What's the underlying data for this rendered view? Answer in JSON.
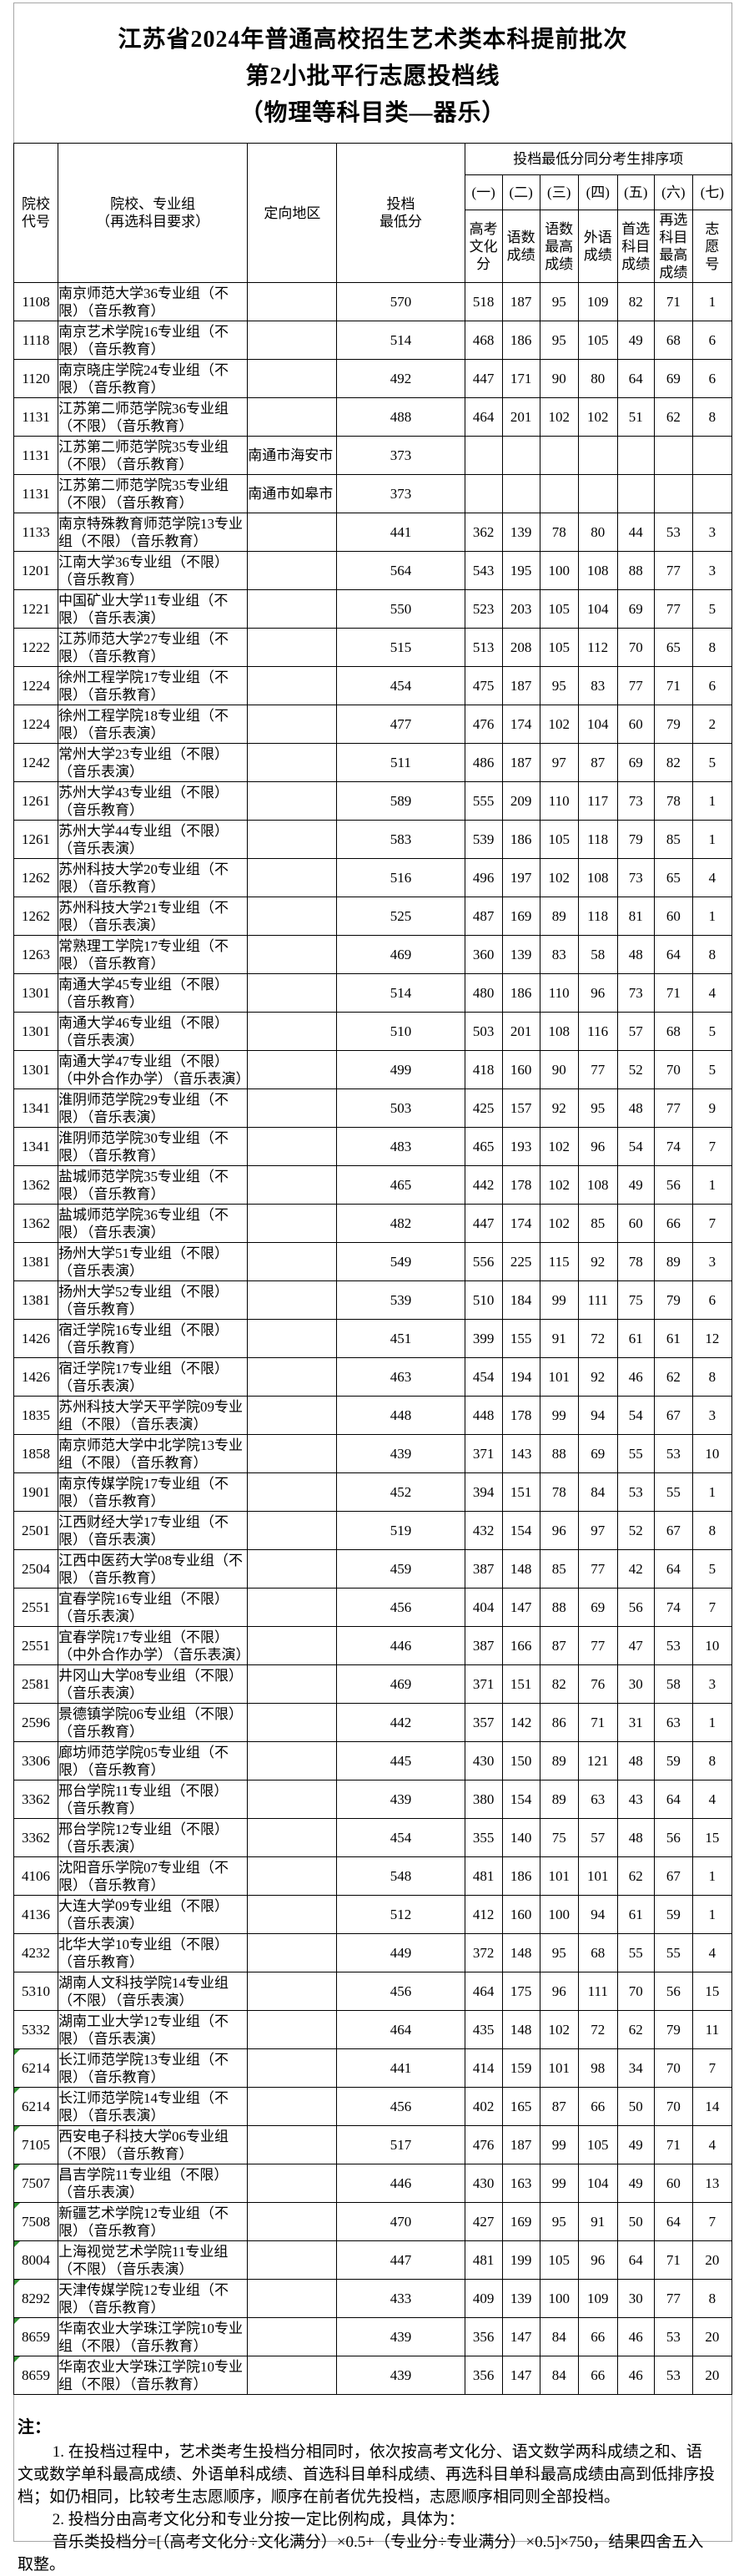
{
  "title": {
    "line1": "江苏省2024年普通高校招生艺术类本科提前批次",
    "line2": "第2小批平行志愿投档线",
    "line3": "（物理等科目类—器乐）"
  },
  "colors": {
    "grid": "#000000",
    "page_border": "#a6a6a6",
    "marker_green": "#2f8f2f",
    "text": "#000000",
    "background": "#ffffff"
  },
  "table": {
    "headers": {
      "code": [
        "院校",
        "代号"
      ],
      "name": [
        "院校、专业组",
        "（再选科目要求）"
      ],
      "region": [
        "定向地区"
      ],
      "min_score": [
        "投档",
        "最低分"
      ],
      "group_title": "投档最低分同分考生排序项",
      "ordinals": [
        "(一)",
        "(二)",
        "(三)",
        "(四)",
        "(五)",
        "(六)",
        "(七)"
      ],
      "sub_labels": [
        [
          "高考",
          "文化",
          "分"
        ],
        [
          "语数",
          "成绩"
        ],
        [
          "语数",
          "最高",
          "成绩"
        ],
        [
          "外语",
          "成绩"
        ],
        [
          "首选",
          "科目",
          "成绩"
        ],
        [
          "再选",
          "科目",
          "最高",
          "成绩"
        ],
        [
          "志",
          "愿",
          "号"
        ]
      ]
    },
    "rows": [
      {
        "code": "1108",
        "name": "南京师范大学36专业组（不限）（音乐教育）",
        "region": "",
        "min": "570",
        "tie": [
          "518",
          "187",
          "95",
          "109",
          "82",
          "71",
          "1"
        ],
        "marker": false
      },
      {
        "code": "1118",
        "name": "南京艺术学院16专业组（不限）（音乐教育）",
        "region": "",
        "min": "514",
        "tie": [
          "468",
          "186",
          "95",
          "105",
          "49",
          "68",
          "6"
        ],
        "marker": false
      },
      {
        "code": "1120",
        "name": "南京晓庄学院24专业组（不限）（音乐教育）",
        "region": "",
        "min": "492",
        "tie": [
          "447",
          "171",
          "90",
          "80",
          "64",
          "69",
          "6"
        ],
        "marker": false
      },
      {
        "code": "1131",
        "name": "江苏第二师范学院36专业组（不限）（音乐教育）",
        "region": "",
        "min": "488",
        "tie": [
          "464",
          "201",
          "102",
          "102",
          "51",
          "62",
          "8"
        ],
        "marker": false
      },
      {
        "code": "1131",
        "name": "江苏第二师范学院35专业组（不限）（音乐教育）",
        "region": "南通市海安市",
        "min": "373",
        "tie": [
          "",
          "",
          "",
          "",
          "",
          "",
          ""
        ],
        "marker": false
      },
      {
        "code": "1131",
        "name": "江苏第二师范学院35专业组（不限）（音乐教育）",
        "region": "南通市如皋市",
        "min": "373",
        "tie": [
          "",
          "",
          "",
          "",
          "",
          "",
          ""
        ],
        "marker": false
      },
      {
        "code": "1133",
        "name": "南京特殊教育师范学院13专业组（不限）（音乐教育）",
        "region": "",
        "min": "441",
        "tie": [
          "362",
          "139",
          "78",
          "80",
          "44",
          "53",
          "3"
        ],
        "marker": false
      },
      {
        "code": "1201",
        "name": "江南大学36专业组（不限）（音乐教育）",
        "region": "",
        "min": "564",
        "tie": [
          "543",
          "195",
          "100",
          "108",
          "88",
          "77",
          "3"
        ],
        "marker": false
      },
      {
        "code": "1221",
        "name": "中国矿业大学11专业组（不限）（音乐表演）",
        "region": "",
        "min": "550",
        "tie": [
          "523",
          "203",
          "105",
          "104",
          "69",
          "77",
          "5"
        ],
        "marker": false
      },
      {
        "code": "1222",
        "name": "江苏师范大学27专业组（不限）（音乐教育）",
        "region": "",
        "min": "515",
        "tie": [
          "513",
          "208",
          "105",
          "112",
          "70",
          "65",
          "8"
        ],
        "marker": false
      },
      {
        "code": "1224",
        "name": "徐州工程学院17专业组（不限）（音乐教育）",
        "region": "",
        "min": "454",
        "tie": [
          "475",
          "187",
          "95",
          "83",
          "77",
          "71",
          "6"
        ],
        "marker": false
      },
      {
        "code": "1224",
        "name": "徐州工程学院18专业组（不限）（音乐表演）",
        "region": "",
        "min": "477",
        "tie": [
          "476",
          "174",
          "102",
          "104",
          "60",
          "79",
          "2"
        ],
        "marker": false
      },
      {
        "code": "1242",
        "name": "常州大学23专业组（不限）（音乐表演）",
        "region": "",
        "min": "511",
        "tie": [
          "486",
          "187",
          "97",
          "87",
          "69",
          "82",
          "5"
        ],
        "marker": false
      },
      {
        "code": "1261",
        "name": "苏州大学43专业组（不限）（音乐教育）",
        "region": "",
        "min": "589",
        "tie": [
          "555",
          "209",
          "110",
          "117",
          "73",
          "78",
          "1"
        ],
        "marker": false
      },
      {
        "code": "1261",
        "name": "苏州大学44专业组（不限）（音乐表演）",
        "region": "",
        "min": "583",
        "tie": [
          "539",
          "186",
          "105",
          "118",
          "79",
          "85",
          "1"
        ],
        "marker": false
      },
      {
        "code": "1262",
        "name": "苏州科技大学20专业组（不限）（音乐教育）",
        "region": "",
        "min": "516",
        "tie": [
          "496",
          "197",
          "102",
          "108",
          "73",
          "65",
          "4"
        ],
        "marker": false
      },
      {
        "code": "1262",
        "name": "苏州科技大学21专业组（不限）（音乐表演）",
        "region": "",
        "min": "525",
        "tie": [
          "487",
          "169",
          "89",
          "118",
          "81",
          "60",
          "1"
        ],
        "marker": false
      },
      {
        "code": "1263",
        "name": "常熟理工学院17专业组（不限）（音乐教育）",
        "region": "",
        "min": "469",
        "tie": [
          "360",
          "139",
          "83",
          "58",
          "48",
          "64",
          "8"
        ],
        "marker": false
      },
      {
        "code": "1301",
        "name": "南通大学45专业组（不限）（音乐教育）",
        "region": "",
        "min": "514",
        "tie": [
          "480",
          "186",
          "110",
          "96",
          "73",
          "71",
          "4"
        ],
        "marker": false
      },
      {
        "code": "1301",
        "name": "南通大学46专业组（不限）（音乐表演）",
        "region": "",
        "min": "510",
        "tie": [
          "503",
          "201",
          "108",
          "116",
          "57",
          "68",
          "5"
        ],
        "marker": false
      },
      {
        "code": "1301",
        "name": "南通大学47专业组（不限）（中外合作办学）（音乐表演）",
        "region": "",
        "min": "499",
        "tie": [
          "418",
          "160",
          "90",
          "77",
          "52",
          "70",
          "5"
        ],
        "marker": false
      },
      {
        "code": "1341",
        "name": "淮阴师范学院29专业组（不限）（音乐表演）",
        "region": "",
        "min": "503",
        "tie": [
          "425",
          "157",
          "92",
          "95",
          "48",
          "77",
          "9"
        ],
        "marker": false
      },
      {
        "code": "1341",
        "name": "淮阴师范学院30专业组（不限）（音乐教育）",
        "region": "",
        "min": "483",
        "tie": [
          "465",
          "193",
          "102",
          "96",
          "54",
          "74",
          "7"
        ],
        "marker": false
      },
      {
        "code": "1362",
        "name": "盐城师范学院35专业组（不限）（音乐教育）",
        "region": "",
        "min": "465",
        "tie": [
          "442",
          "178",
          "102",
          "108",
          "49",
          "56",
          "1"
        ],
        "marker": false
      },
      {
        "code": "1362",
        "name": "盐城师范学院36专业组（不限）（音乐表演）",
        "region": "",
        "min": "482",
        "tie": [
          "447",
          "174",
          "102",
          "85",
          "60",
          "66",
          "7"
        ],
        "marker": false
      },
      {
        "code": "1381",
        "name": "扬州大学51专业组（不限）（音乐表演）",
        "region": "",
        "min": "549",
        "tie": [
          "556",
          "225",
          "115",
          "92",
          "78",
          "89",
          "3"
        ],
        "marker": false
      },
      {
        "code": "1381",
        "name": "扬州大学52专业组（不限）（音乐教育）",
        "region": "",
        "min": "539",
        "tie": [
          "510",
          "184",
          "99",
          "111",
          "75",
          "79",
          "6"
        ],
        "marker": false
      },
      {
        "code": "1426",
        "name": "宿迁学院16专业组（不限）（音乐教育）",
        "region": "",
        "min": "451",
        "tie": [
          "399",
          "155",
          "91",
          "72",
          "61",
          "61",
          "12"
        ],
        "marker": false
      },
      {
        "code": "1426",
        "name": "宿迁学院17专业组（不限）（音乐表演）",
        "region": "",
        "min": "463",
        "tie": [
          "454",
          "194",
          "101",
          "92",
          "46",
          "62",
          "8"
        ],
        "marker": false
      },
      {
        "code": "1835",
        "name": "苏州科技大学天平学院09专业组（不限）（音乐表演）",
        "region": "",
        "min": "448",
        "tie": [
          "448",
          "178",
          "99",
          "94",
          "54",
          "67",
          "3"
        ],
        "marker": false
      },
      {
        "code": "1858",
        "name": "南京师范大学中北学院13专业组（不限）（音乐教育）",
        "region": "",
        "min": "439",
        "tie": [
          "371",
          "143",
          "88",
          "69",
          "55",
          "53",
          "10"
        ],
        "marker": false
      },
      {
        "code": "1901",
        "name": "南京传媒学院17专业组（不限）（音乐教育）",
        "region": "",
        "min": "452",
        "tie": [
          "394",
          "151",
          "78",
          "84",
          "53",
          "55",
          "1"
        ],
        "marker": false
      },
      {
        "code": "2501",
        "name": "江西财经大学17专业组（不限）（音乐表演）",
        "region": "",
        "min": "519",
        "tie": [
          "432",
          "154",
          "96",
          "97",
          "52",
          "67",
          "8"
        ],
        "marker": false
      },
      {
        "code": "2504",
        "name": "江西中医药大学08专业组（不限）（音乐教育）",
        "region": "",
        "min": "459",
        "tie": [
          "387",
          "148",
          "85",
          "77",
          "42",
          "64",
          "5"
        ],
        "marker": false
      },
      {
        "code": "2551",
        "name": "宜春学院16专业组（不限）（音乐表演）",
        "region": "",
        "min": "456",
        "tie": [
          "404",
          "147",
          "88",
          "69",
          "56",
          "74",
          "7"
        ],
        "marker": false
      },
      {
        "code": "2551",
        "name": "宜春学院17专业组（不限）（中外合作办学）（音乐表演）",
        "region": "",
        "min": "446",
        "tie": [
          "387",
          "166",
          "87",
          "77",
          "47",
          "53",
          "10"
        ],
        "marker": false
      },
      {
        "code": "2581",
        "name": "井冈山大学08专业组（不限）（音乐表演）",
        "region": "",
        "min": "469",
        "tie": [
          "371",
          "151",
          "82",
          "76",
          "30",
          "58",
          "3"
        ],
        "marker": false
      },
      {
        "code": "2596",
        "name": "景德镇学院06专业组（不限）（音乐教育）",
        "region": "",
        "min": "442",
        "tie": [
          "357",
          "142",
          "86",
          "71",
          "31",
          "63",
          "1"
        ],
        "marker": false
      },
      {
        "code": "3306",
        "name": "廊坊师范学院05专业组（不限）（音乐教育）",
        "region": "",
        "min": "445",
        "tie": [
          "430",
          "150",
          "89",
          "121",
          "48",
          "59",
          "8"
        ],
        "marker": false
      },
      {
        "code": "3362",
        "name": "邢台学院11专业组（不限）（音乐教育）",
        "region": "",
        "min": "439",
        "tie": [
          "380",
          "154",
          "89",
          "63",
          "43",
          "64",
          "4"
        ],
        "marker": false
      },
      {
        "code": "3362",
        "name": "邢台学院12专业组（不限）（音乐表演）",
        "region": "",
        "min": "454",
        "tie": [
          "355",
          "140",
          "75",
          "57",
          "48",
          "56",
          "15"
        ],
        "marker": false
      },
      {
        "code": "4106",
        "name": "沈阳音乐学院07专业组（不限）（音乐教育）",
        "region": "",
        "min": "548",
        "tie": [
          "481",
          "186",
          "101",
          "101",
          "62",
          "67",
          "1"
        ],
        "marker": false
      },
      {
        "code": "4136",
        "name": "大连大学09专业组（不限）（音乐表演）",
        "region": "",
        "min": "512",
        "tie": [
          "412",
          "160",
          "100",
          "94",
          "61",
          "59",
          "1"
        ],
        "marker": false
      },
      {
        "code": "4232",
        "name": "北华大学10专业组（不限）（音乐教育）",
        "region": "",
        "min": "449",
        "tie": [
          "372",
          "148",
          "95",
          "68",
          "55",
          "55",
          "4"
        ],
        "marker": false
      },
      {
        "code": "5310",
        "name": "湖南人文科技学院14专业组（不限）（音乐表演）",
        "region": "",
        "min": "456",
        "tie": [
          "464",
          "175",
          "96",
          "111",
          "70",
          "56",
          "15"
        ],
        "marker": false
      },
      {
        "code": "5332",
        "name": "湖南工业大学12专业组（不限）（音乐表演）",
        "region": "",
        "min": "464",
        "tie": [
          "435",
          "148",
          "102",
          "72",
          "62",
          "79",
          "11"
        ],
        "marker": false
      },
      {
        "code": "6214",
        "name": "长江师范学院13专业组（不限）（音乐教育）",
        "region": "",
        "min": "441",
        "tie": [
          "414",
          "159",
          "101",
          "98",
          "34",
          "70",
          "7"
        ],
        "marker": true
      },
      {
        "code": "6214",
        "name": "长江师范学院14专业组（不限）（音乐表演）",
        "region": "",
        "min": "456",
        "tie": [
          "402",
          "165",
          "87",
          "66",
          "50",
          "70",
          "14"
        ],
        "marker": true
      },
      {
        "code": "7105",
        "name": "西安电子科技大学06专业组（不限）（音乐教育）",
        "region": "",
        "min": "517",
        "tie": [
          "476",
          "187",
          "99",
          "105",
          "49",
          "71",
          "4"
        ],
        "marker": true
      },
      {
        "code": "7507",
        "name": "昌吉学院11专业组（不限）（音乐表演）",
        "region": "",
        "min": "446",
        "tie": [
          "430",
          "163",
          "99",
          "104",
          "49",
          "60",
          "13"
        ],
        "marker": true
      },
      {
        "code": "7508",
        "name": "新疆艺术学院12专业组（不限）（音乐教育）",
        "region": "",
        "min": "470",
        "tie": [
          "427",
          "169",
          "95",
          "91",
          "50",
          "64",
          "7"
        ],
        "marker": true
      },
      {
        "code": "8004",
        "name": "上海视觉艺术学院11专业组（不限）（音乐表演）",
        "region": "",
        "min": "447",
        "tie": [
          "481",
          "199",
          "105",
          "96",
          "64",
          "71",
          "20"
        ],
        "marker": true
      },
      {
        "code": "8292",
        "name": "天津传媒学院12专业组（不限）（音乐教育）",
        "region": "",
        "min": "433",
        "tie": [
          "409",
          "139",
          "100",
          "109",
          "30",
          "77",
          "8"
        ],
        "marker": true
      },
      {
        "code": "8659",
        "name": "华南农业大学珠江学院10专业组（不限）（音乐教育）",
        "region": "",
        "min": "439",
        "tie": [
          "356",
          "147",
          "84",
          "66",
          "46",
          "53",
          "20"
        ],
        "marker": true
      },
      {
        "code": "8659",
        "name": "华南农业大学珠江学院10专业组（不限）（音乐教育）",
        "region": "",
        "min": "439",
        "tie": [
          "356",
          "147",
          "84",
          "66",
          "46",
          "53",
          "20"
        ],
        "marker": true
      }
    ]
  },
  "notes": {
    "label": "注：",
    "items": [
      "1. 在投档过程中，艺术类考生投档分相同时，依次按高考文化分、语文数学两科成绩之和、语文或数学单科最高成绩、外语单科成绩、首选科目单科成绩、再选科目单科最高成绩由高到低排序投档；如仍相同，比较考生志愿顺序，顺序在前者优先投档，志愿顺序相同则全部投档。",
      "2. 投档分由高考文化分和专业分按一定比例构成，具体为：",
      "音乐类投档分=[（高考文化分÷文化满分）×0.5+（专业分÷专业满分）×0.5]×750，结果四舍五入取整。"
    ]
  }
}
